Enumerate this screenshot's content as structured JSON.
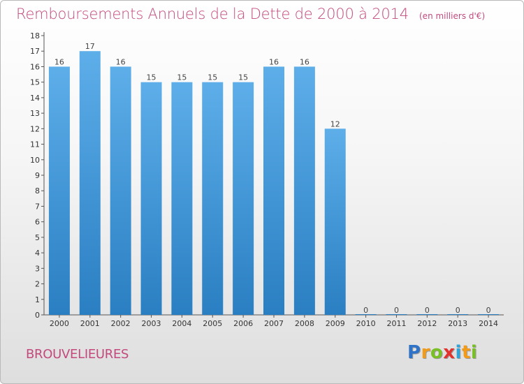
{
  "header": {
    "title": "Remboursements Annuels de la Dette de 2000 à 2014",
    "unit": "(en milliers d'€)"
  },
  "footer": {
    "place": "BROUVELIEURES",
    "logo_letters": [
      {
        "ch": "P",
        "color": "#2e73c8"
      },
      {
        "ch": "r",
        "color": "#f29b1b"
      },
      {
        "ch": "o",
        "color": "#7bbf27"
      },
      {
        "ch": "x",
        "color": "#e2322d"
      },
      {
        "ch": "i",
        "color": "#2ea4d9"
      },
      {
        "ch": "t",
        "color": "#f29b1b"
      },
      {
        "ch": "i",
        "color": "#7bbf27"
      }
    ]
  },
  "colors": {
    "bar_top": "#5daee9",
    "bar_bottom": "#2a7fc2",
    "title": "#c24a7d"
  },
  "chart_data": {
    "type": "bar",
    "title": "Remboursements Annuels de la Dette de 2000 à 2014",
    "ylabel": "",
    "xlabel": "",
    "ylim": [
      0,
      18
    ],
    "yticks": [
      0,
      1,
      2,
      3,
      4,
      5,
      6,
      7,
      8,
      9,
      10,
      11,
      12,
      13,
      14,
      15,
      16,
      17,
      18
    ],
    "categories": [
      "2000",
      "2001",
      "2002",
      "2003",
      "2004",
      "2005",
      "2006",
      "2007",
      "2008",
      "2009",
      "2010",
      "2011",
      "2012",
      "2013",
      "2014"
    ],
    "values": [
      16,
      17,
      16,
      15,
      15,
      15,
      15,
      16,
      16,
      12,
      0,
      0,
      0,
      0,
      0
    ],
    "data_labels": [
      "16",
      "17",
      "16",
      "15",
      "15",
      "15",
      "15",
      "16",
      "16",
      "12",
      "0",
      "0",
      "0",
      "0",
      "0"
    ],
    "grid": false
  }
}
